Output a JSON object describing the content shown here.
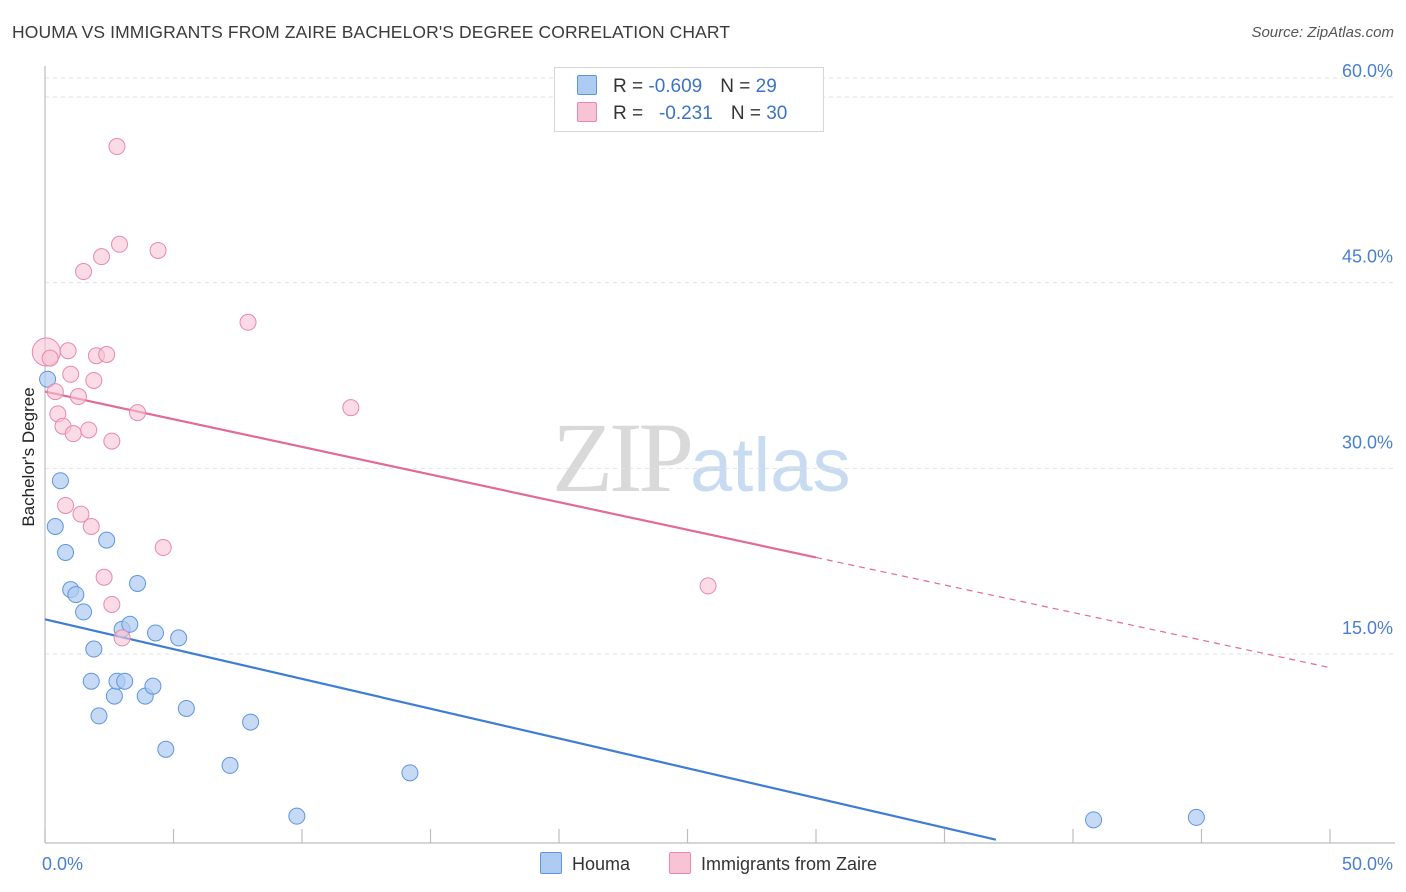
{
  "title": "HOUMA VS IMMIGRANTS FROM ZAIRE BACHELOR'S DEGREE CORRELATION CHART",
  "source": "Source: ZipAtlas.com",
  "watermark": {
    "zip": "ZIP",
    "atlas": "atlas"
  },
  "legend": {
    "rows": [
      {
        "r_label": "R = ",
        "r_value": "-0.609",
        "n_label": "N = ",
        "n_value": "29"
      },
      {
        "r_label": "R = ",
        "r_value": "-0.231",
        "n_label": "N = ",
        "n_value": "30"
      }
    ]
  },
  "chart_data": {
    "type": "scatter",
    "title": "HOUMA VS IMMIGRANTS FROM ZAIRE BACHELOR'S DEGREE CORRELATION CHART",
    "xlabel": "",
    "ylabel": "Bachelor's Degree",
    "xlim": [
      0,
      50
    ],
    "ylim": [
      0,
      63
    ],
    "x_tick_labels": [
      "0.0%",
      "50.0%"
    ],
    "y_ticks": [
      15,
      30,
      45,
      60
    ],
    "y_tick_labels": [
      "15.0%",
      "30.0%",
      "45.0%",
      "60.0%"
    ],
    "grid": true,
    "colors": {
      "houma_fill": "#aecbf2",
      "houma_stroke": "#5f95dd",
      "houma_line": "#3d7dd6",
      "zaire_fill": "#f8c3d4",
      "zaire_stroke": "#e88aa8",
      "zaire_line": "#e26b95"
    },
    "series": [
      {
        "name": "Houma",
        "points": [
          [
            0.1,
            37.2
          ],
          [
            0.4,
            25.3
          ],
          [
            0.6,
            29.0
          ],
          [
            0.8,
            23.2
          ],
          [
            1.0,
            20.2
          ],
          [
            1.2,
            19.8
          ],
          [
            1.5,
            18.4
          ],
          [
            1.8,
            12.8
          ],
          [
            1.9,
            15.4
          ],
          [
            2.1,
            10.0
          ],
          [
            2.4,
            24.2
          ],
          [
            2.7,
            11.6
          ],
          [
            2.8,
            12.8
          ],
          [
            3.0,
            17.0
          ],
          [
            3.1,
            12.8
          ],
          [
            3.3,
            17.4
          ],
          [
            3.6,
            20.7
          ],
          [
            3.9,
            11.6
          ],
          [
            4.2,
            12.4
          ],
          [
            4.3,
            16.7
          ],
          [
            4.7,
            7.3
          ],
          [
            5.2,
            16.3
          ],
          [
            5.5,
            10.6
          ],
          [
            7.2,
            6.0
          ],
          [
            8.0,
            9.5
          ],
          [
            9.8,
            1.9
          ],
          [
            14.2,
            5.4
          ],
          [
            40.8,
            1.6
          ],
          [
            44.8,
            1.8
          ]
        ],
        "trend": {
          "x": [
            0,
            37.0
          ],
          "y": [
            17.8,
            0
          ]
        }
      },
      {
        "name": "Immigrants from Zaire",
        "points": [
          [
            0.05,
            39.4
          ],
          [
            0.2,
            38.9
          ],
          [
            0.4,
            36.2
          ],
          [
            0.5,
            34.4
          ],
          [
            0.7,
            33.4
          ],
          [
            0.8,
            27.0
          ],
          [
            0.9,
            39.5
          ],
          [
            1.0,
            37.6
          ],
          [
            1.1,
            32.8
          ],
          [
            1.3,
            35.8
          ],
          [
            1.4,
            26.3
          ],
          [
            1.5,
            45.9
          ],
          [
            1.7,
            33.1
          ],
          [
            1.8,
            25.3
          ],
          [
            1.9,
            37.1
          ],
          [
            2.0,
            39.1
          ],
          [
            2.2,
            47.1
          ],
          [
            2.3,
            21.2
          ],
          [
            2.4,
            39.2
          ],
          [
            2.6,
            32.2
          ],
          [
            2.6,
            19.0
          ],
          [
            2.8,
            56.0
          ],
          [
            2.9,
            48.1
          ],
          [
            3.0,
            16.3
          ],
          [
            3.6,
            34.5
          ],
          [
            4.4,
            47.6
          ],
          [
            4.6,
            23.6
          ],
          [
            7.9,
            41.8
          ],
          [
            11.9,
            34.9
          ],
          [
            25.8,
            20.5
          ]
        ],
        "trend": {
          "x": [
            0,
            30.0
          ],
          "y": [
            36.2,
            22.8
          ],
          "dashed_to": {
            "x": 50.0,
            "y": 13.9
          }
        }
      }
    ]
  },
  "bottom_legend": [
    {
      "label": "Houma"
    },
    {
      "label": "Immigrants from Zaire"
    }
  ]
}
